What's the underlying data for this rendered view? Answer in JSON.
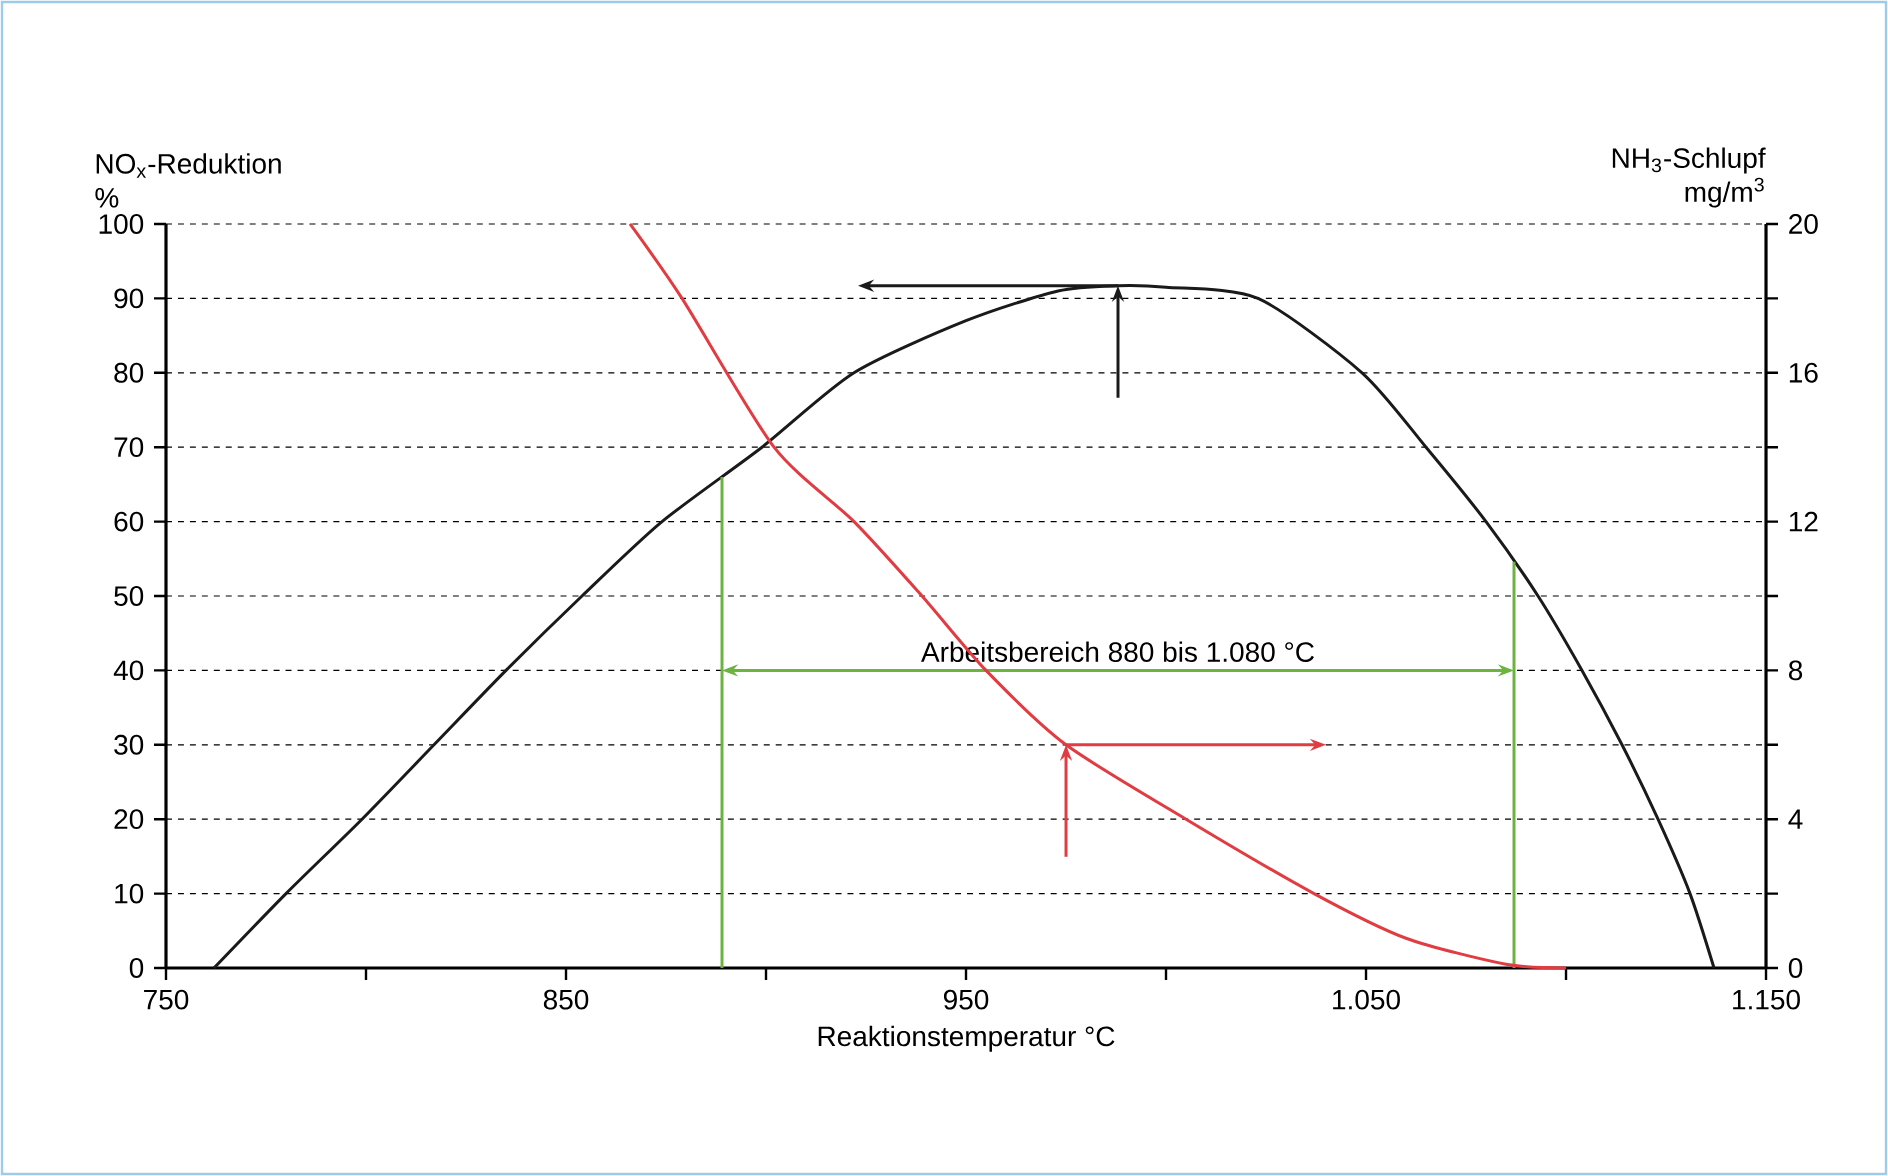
{
  "chart_data": {
    "type": "line",
    "ylabel": "NO$_{x}$-Reduktion %",
    "y2label": "NH$_{3}$-Schlupf mg/m$^{3}$",
    "xlabel": "Reaktionstemperatur   °C",
    "xlim": [
      750,
      1150
    ],
    "xticks": [
      750,
      850,
      950,
      {
        "value": 1050,
        "label": "1.050"
      },
      {
        "value": 1150,
        "label": "1.150"
      },
      {
        "value": 800,
        "label": null
      },
      {
        "value": 900,
        "label": null
      },
      {
        "value": 1000,
        "label": null
      },
      {
        "value": 1100,
        "label": null
      }
    ],
    "ylim": [
      0,
      100
    ],
    "yticks": [
      0,
      10,
      20,
      30,
      40,
      50,
      60,
      70,
      80,
      90,
      100
    ],
    "y2lim": [
      0,
      20
    ],
    "y2ticks": [
      0,
      4,
      8,
      12,
      16,
      20,
      {
        "value": 2,
        "label": null
      },
      {
        "value": 6,
        "label": null
      },
      {
        "value": 10,
        "label": null
      },
      {
        "value": 14,
        "label": null
      },
      {
        "value": 18,
        "label": null
      }
    ],
    "grid": "y",
    "marker": "none",
    "line_style": "solid",
    "series": [
      {
        "color": "#1a1a1a",
        "axis": "y",
        "x": [
          762,
          780,
          799,
          817,
          835,
          854,
          874,
          899,
          922,
          950,
          973,
          988,
          1000,
          1023,
          1049,
          1065,
          1080,
          1093,
          1104,
          1114,
          1123,
          1131,
          1137
        ],
        "values": [
          0,
          10,
          20,
          30,
          40,
          50,
          60,
          70,
          80,
          87,
          91,
          91.7,
          91.5,
          90,
          80,
          70,
          60,
          50,
          40,
          30,
          20,
          10,
          0
        ]
      },
      {
        "color": "#e03c41",
        "axis": "y2",
        "x": [
          866,
          879,
          902,
          922,
          939,
          955,
          975,
          1005,
          1037,
          1060,
          1085,
          1100
        ],
        "values": [
          20,
          18,
          14,
          12,
          10,
          8,
          6,
          4,
          2,
          0.8,
          0.1,
          0
        ]
      }
    ],
    "ref_lines": [
      {
        "axis": "x",
        "value": 889,
        "color": "#6cb33f"
      },
      {
        "axis": "x",
        "value": 1087,
        "color": "#6cb33f"
      }
    ],
    "annotations": [
      "Arbeitsbereich 880 bis 1.080 °C"
    ]
  }
}
